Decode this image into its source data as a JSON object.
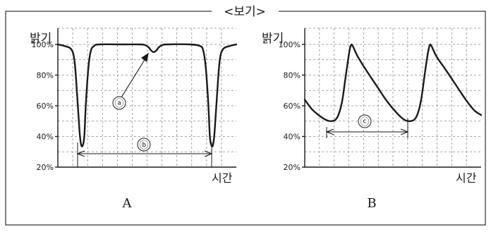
{
  "title": "<보기>",
  "chart_data": [
    {
      "type": "line",
      "caption": "A",
      "ylabel": "밝기",
      "xlabel": "시간",
      "ylim": [
        20,
        100
      ],
      "yticks": [
        20,
        40,
        60,
        80,
        100
      ],
      "ytick_labels": [
        "20%",
        "40%",
        "60%",
        "80%",
        "100%"
      ],
      "grid": true,
      "series": [
        {
          "points": [
            [
              0,
              100
            ],
            [
              4,
              99
            ],
            [
              8,
              97
            ],
            [
              10,
              90
            ],
            [
              11.5,
              70
            ],
            [
              13,
              45
            ],
            [
              14,
              35
            ],
            [
              15,
              34
            ],
            [
              16,
              40
            ],
            [
              17,
              62
            ],
            [
              18.5,
              85
            ],
            [
              20,
              96
            ],
            [
              22,
              99
            ],
            [
              25,
              100
            ],
            [
              40,
              100
            ],
            [
              50,
              100
            ],
            [
              53,
              99.5
            ],
            [
              55,
              98
            ],
            [
              56.5,
              96
            ],
            [
              58,
              95
            ],
            [
              59.5,
              96
            ],
            [
              61,
              98
            ],
            [
              63,
              99.5
            ],
            [
              66,
              100
            ],
            [
              80,
              100
            ],
            [
              86,
              99
            ],
            [
              88,
              96
            ],
            [
              89.5,
              85
            ],
            [
              91,
              62
            ],
            [
              92,
              40
            ],
            [
              93,
              34
            ],
            [
              94,
              35
            ],
            [
              95,
              45
            ],
            [
              96.5,
              70
            ],
            [
              98,
              90
            ],
            [
              100,
              97
            ],
            [
              104,
              99
            ],
            [
              108,
              100
            ]
          ]
        }
      ],
      "annotations": [
        {
          "label": "ⓐ",
          "target": "작은 밝기 감소 (약 95%)"
        },
        {
          "label": "ⓑ",
          "spans": "두 밝기 최솟값 사이 간격"
        }
      ]
    },
    {
      "type": "line",
      "caption": "B",
      "ylabel": "밝기",
      "xlabel": "시간",
      "ylim": [
        20,
        100
      ],
      "yticks": [
        20,
        40,
        60,
        80,
        100
      ],
      "ytick_labels": [
        "20%",
        "40%",
        "60%",
        "80%",
        "100%"
      ],
      "grid": true,
      "series": [
        {
          "points": [
            [
              0,
              64
            ],
            [
              4,
              58
            ],
            [
              8,
              54
            ],
            [
              12,
              51
            ],
            [
              15,
              50
            ],
            [
              18,
              51
            ],
            [
              20,
              55
            ],
            [
              22,
              64
            ],
            [
              24,
              80
            ],
            [
              26,
              95
            ],
            [
              27,
              99.5
            ],
            [
              28,
              99
            ],
            [
              31,
              92
            ],
            [
              36,
              83
            ],
            [
              42,
              73
            ],
            [
              48,
              63
            ],
            [
              54,
              55
            ],
            [
              58,
              51
            ],
            [
              61,
              50
            ],
            [
              64,
              51
            ],
            [
              66,
              55
            ],
            [
              68,
              64
            ],
            [
              70,
              80
            ],
            [
              72,
              95
            ],
            [
              73,
              99.5
            ],
            [
              74,
              99
            ],
            [
              77,
              92
            ],
            [
              82,
              84
            ],
            [
              88,
              74
            ],
            [
              94,
              64
            ],
            [
              99,
              57
            ],
            [
              103,
              54
            ]
          ]
        }
      ],
      "annotations": [
        {
          "label": "ⓒ",
          "spans": "두 밝기 최솟값 사이 간격"
        }
      ]
    }
  ]
}
